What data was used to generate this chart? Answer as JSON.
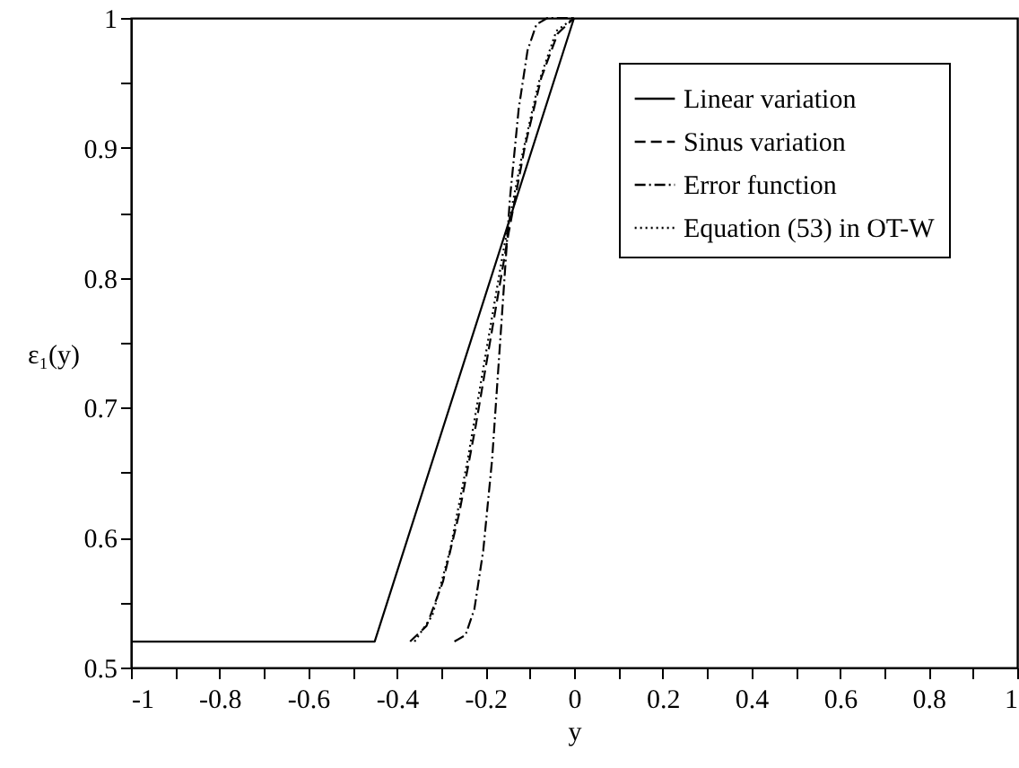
{
  "chart_data": {
    "type": "line",
    "xlabel": "y",
    "ylabel": "ε₁(y)",
    "xlim": [
      -1,
      1
    ],
    "ylim": [
      0.5,
      1
    ],
    "xticks": [
      -1,
      {
        "value": -0.9,
        "label": null
      },
      -0.8,
      {
        "value": -0.7,
        "label": null
      },
      -0.6,
      {
        "value": -0.5,
        "label": null
      },
      -0.4,
      {
        "value": -0.3,
        "label": null
      },
      -0.2,
      {
        "value": -0.1,
        "label": null
      },
      0,
      {
        "value": 0.1,
        "label": null
      },
      0.2,
      {
        "value": 0.3,
        "label": null
      },
      0.4,
      {
        "value": 0.5,
        "label": null
      },
      0.6,
      {
        "value": 0.7,
        "label": null
      },
      0.8,
      {
        "value": 0.9,
        "label": null
      },
      1
    ],
    "yticks": [
      0.5,
      {
        "value": 0.55,
        "label": null
      },
      0.6,
      {
        "value": 0.65,
        "label": null
      },
      0.7,
      {
        "value": 0.75,
        "label": null
      },
      0.8,
      {
        "value": 0.85,
        "label": null
      },
      0.9,
      {
        "value": 0.95,
        "label": null
      },
      1
    ],
    "legend": "top right",
    "marker": "none",
    "series": [
      {
        "name": "Linear variation",
        "color": "#000000",
        "line_style": "solid",
        "x": [
          -1,
          -0.45,
          0
        ],
        "values": [
          0.52,
          0.52,
          1
        ]
      },
      {
        "name": "Sinus variation",
        "color": "#000000",
        "line_style": "dashed",
        "x": [
          -0.37,
          -0.333,
          -0.296,
          -0.259,
          -0.222,
          -0.185,
          -0.148,
          -0.111,
          -0.074,
          -0.037,
          0
        ],
        "values": [
          0.52,
          0.532,
          0.566,
          0.619,
          0.686,
          0.76,
          0.834,
          0.901,
          0.954,
          0.988,
          1
        ]
      },
      {
        "name": "Error function",
        "color": "#000000",
        "line_style": "dashdot",
        "x": [
          -0.27,
          -0.245,
          -0.225,
          -0.205,
          -0.185,
          -0.165,
          -0.145,
          -0.125,
          -0.105,
          -0.085,
          -0.06,
          0
        ],
        "values": [
          0.52,
          0.525,
          0.545,
          0.59,
          0.66,
          0.76,
          0.86,
          0.93,
          0.975,
          0.995,
          1,
          1
        ]
      },
      {
        "name": "Equation (53) in OT-W",
        "color": "#000000",
        "line_style": "dotted",
        "x": [
          -0.36,
          -0.32,
          -0.28,
          -0.24,
          -0.2,
          -0.16,
          -0.12,
          -0.08,
          -0.04,
          0
        ],
        "values": [
          0.52,
          0.54,
          0.59,
          0.66,
          0.74,
          0.82,
          0.89,
          0.95,
          0.99,
          1
        ]
      }
    ]
  }
}
